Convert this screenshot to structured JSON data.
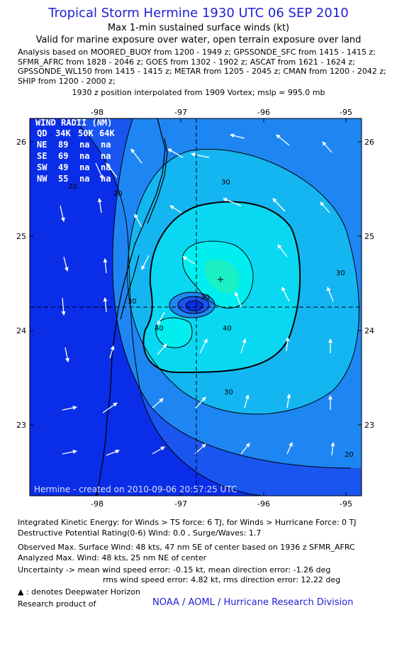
{
  "header": {
    "title": "Tropical Storm Hermine 1930 UTC 06 SEP 2010",
    "subtitle1": "Max 1-min sustained surface winds (kt)",
    "subtitle2": "Valid for marine exposure over water, open terrain exposure over land",
    "analysis_lines": [
      "Analysis based on MOORED_BUOY from 1200 - 1949 z; GPSSONDE_SFC from 1415 - 1415 z;",
      "SFMR_AFRC from 1828 - 2046 z; GOES from 1302 - 1902 z; ASCAT from 1621 - 1624 z;",
      "GPSSONDE_WL150 from 1415 - 1415 z; METAR from 1205 - 2045 z; CMAN from 1200 - 2042 z;",
      "SHIP from 1200 - 2000 z;"
    ],
    "position_line": "1930 z position interpolated from 1909 Vortex; mslp = 995.0 mb"
  },
  "map": {
    "lon_labels": [
      "-98",
      "-97",
      "-96",
      "-95"
    ],
    "lat_labels": [
      "26",
      "25",
      "24",
      "23"
    ],
    "credit": "Hermine - created on 2010-09-06 20:57:25 UTC",
    "contour_labels": [
      "20",
      "20",
      "20",
      "30",
      "30",
      "30",
      "30",
      "40",
      "40",
      "30"
    ],
    "wind_radii": {
      "title": "WIND RADII (NM)",
      "header": [
        "QD",
        "34K",
        "50K",
        "64K"
      ],
      "rows": [
        [
          "NE",
          "89",
          "na",
          "na"
        ],
        [
          "SE",
          "69",
          "na",
          "na"
        ],
        [
          "SW",
          "49",
          "na",
          "na"
        ],
        [
          "NW",
          "55",
          "na",
          "na"
        ]
      ]
    },
    "colors": {
      "deep": "#0a2ee8",
      "c10": "#1a55f0",
      "c20": "#1e86f2",
      "c30": "#14b6f2",
      "c35": "#0ad8f2",
      "c40": "#00eef0",
      "c45": "#1af0c4",
      "c50": "#3aee98"
    }
  },
  "footer": {
    "ike": "Integrated Kinetic Energy:  for Winds > TS force: 6 TJ,  for Winds > Hurricane Force: 0 TJ",
    "dpr": "Destructive Potential Rating(0-6)   Wind: 0.0 , Surge/Waves: 1.7",
    "obs_max": "Observed Max. Surface Wind: 48 kts, 47 nm SE of center based on 1936 z SFMR_AFRC",
    "ana_max": "Analyzed Max. Wind: 48 kts, 25 nm NE of center",
    "uncert1": "Uncertainty -> mean wind speed error:  -0.15 kt,   mean direction error:  -1.26 deg",
    "uncert2": "rms wind speed error: 4.82 kt,   rms direction error: 12.22 deg",
    "deepwater": ": denotes Deepwater Horizon",
    "research": "Research product of",
    "noaa": "NOAA / AOML / Hurricane Research Division"
  }
}
